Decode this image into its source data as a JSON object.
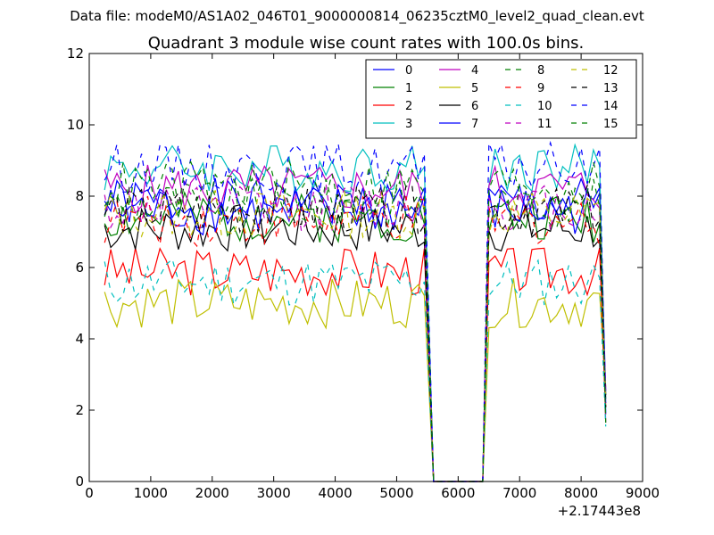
{
  "chart_data": {
    "type": "line",
    "suptitle": "Data file: modeM0/AS1A02_046T01_9000000814_06235cztM0_level2_quad_clean.evt",
    "title": "Quadrant 3 module wise count rates with 100.0s bins.",
    "xlabel": "",
    "ylabel": "",
    "xlim": [
      0,
      9000
    ],
    "ylim": [
      0,
      12
    ],
    "x_ticks": [
      "0",
      "1000",
      "2000",
      "3000",
      "4000",
      "5000",
      "6000",
      "7000",
      "8000",
      "9000"
    ],
    "y_ticks": [
      "0",
      "2",
      "4",
      "6",
      "8",
      "10",
      "12"
    ],
    "x_offset_label": "+2.17443e8",
    "legend_position": "top-right",
    "grid": false,
    "series": [
      {
        "name": "0",
        "color": "#0000ff",
        "dashed": false,
        "base": 7.8,
        "seed": 1
      },
      {
        "name": "1",
        "color": "#008000",
        "dashed": false,
        "base": 7.4,
        "seed": 2
      },
      {
        "name": "2",
        "color": "#ff0000",
        "dashed": false,
        "base": 5.9,
        "seed": 3
      },
      {
        "name": "3",
        "color": "#00bfbf",
        "dashed": false,
        "base": 8.8,
        "seed": 4
      },
      {
        "name": "4",
        "color": "#bf00bf",
        "dashed": false,
        "base": 8.2,
        "seed": 5
      },
      {
        "name": "5",
        "color": "#bfbf00",
        "dashed": false,
        "base": 5.0,
        "seed": 6
      },
      {
        "name": "6",
        "color": "#000000",
        "dashed": false,
        "base": 7.1,
        "seed": 7
      },
      {
        "name": "7",
        "color": "#0000ff",
        "dashed": false,
        "base": 7.6,
        "seed": 8
      },
      {
        "name": "8",
        "color": "#008000",
        "dashed": true,
        "base": 7.8,
        "seed": 9
      },
      {
        "name": "9",
        "color": "#ff0000",
        "dashed": true,
        "base": 7.3,
        "seed": 10
      },
      {
        "name": "10",
        "color": "#00bfbf",
        "dashed": true,
        "base": 5.6,
        "seed": 11
      },
      {
        "name": "11",
        "color": "#bf00bf",
        "dashed": true,
        "base": 7.7,
        "seed": 12
      },
      {
        "name": "12",
        "color": "#bfbf00",
        "dashed": true,
        "base": 7.5,
        "seed": 13
      },
      {
        "name": "13",
        "color": "#000000",
        "dashed": true,
        "base": 7.6,
        "seed": 14
      },
      {
        "name": "14",
        "color": "#0000ff",
        "dashed": true,
        "base": 8.8,
        "seed": 15
      },
      {
        "name": "15",
        "color": "#008000",
        "dashed": true,
        "base": 8.3,
        "seed": 16
      }
    ],
    "time_bins": {
      "start": 250,
      "step": 100,
      "segment1_end": 5450,
      "drop_end": 5600,
      "zero_until": 6400,
      "segment2_start": 6450,
      "segment2_end": 8400
    }
  }
}
